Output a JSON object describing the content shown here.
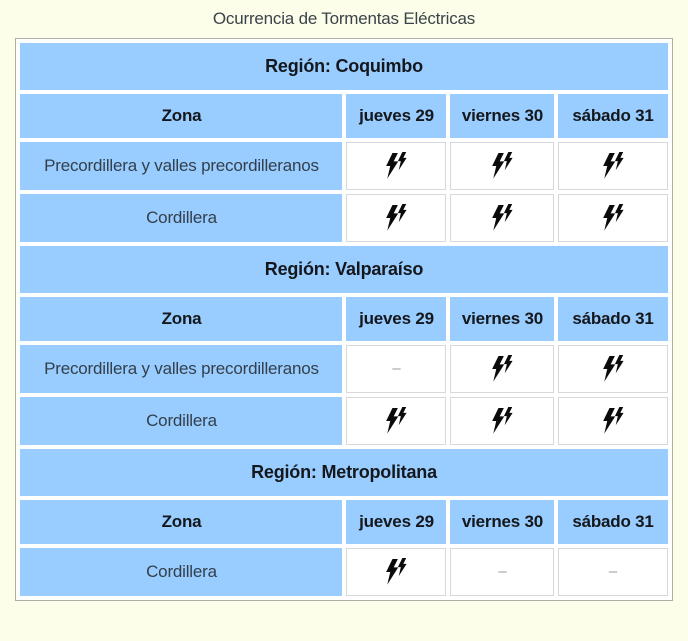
{
  "page": {
    "title": "Ocurrencia de Tormentas Eléctricas"
  },
  "table": {
    "columns": [
      "Zona",
      "jueves 29",
      "viernes 30",
      "sábado 31"
    ],
    "sections": [
      {
        "region_label": "Región: Coquimbo",
        "rows": [
          {
            "zone": "Precordillera y valles precordilleranos",
            "cells": [
              "storm",
              "storm",
              "storm"
            ]
          },
          {
            "zone": "Cordillera",
            "cells": [
              "storm",
              "storm",
              "storm"
            ]
          }
        ]
      },
      {
        "region_label": "Región: Valparaíso",
        "rows": [
          {
            "zone": "Precordillera y valles precordilleranos",
            "cells": [
              "none",
              "storm",
              "storm"
            ]
          },
          {
            "zone": "Cordillera",
            "cells": [
              "storm",
              "storm",
              "storm"
            ]
          }
        ]
      },
      {
        "region_label": "Región: Metropolitana",
        "rows": [
          {
            "zone": "Cordillera",
            "cells": [
              "storm",
              "none",
              "none"
            ]
          }
        ]
      }
    ],
    "empty_symbol": "–",
    "icons": {
      "storm": "double-lightning-bolt-icon"
    }
  },
  "colors": {
    "page_background": "#fdfee9",
    "header_blue": "#99ccff",
    "table_border": "#b2aca2",
    "bolt_black": "#0b0b0b",
    "dash_gray": "#9a9a9a"
  }
}
